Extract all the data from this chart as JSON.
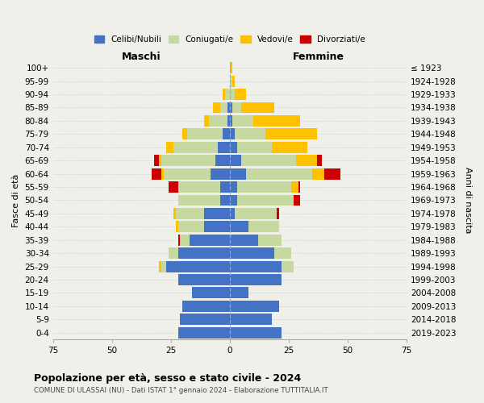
{
  "age_groups": [
    "0-4",
    "5-9",
    "10-14",
    "15-19",
    "20-24",
    "25-29",
    "30-34",
    "35-39",
    "40-44",
    "45-49",
    "50-54",
    "55-59",
    "60-64",
    "65-69",
    "70-74",
    "75-79",
    "80-84",
    "85-89",
    "90-94",
    "95-99",
    "100+"
  ],
  "birth_years": [
    "2019-2023",
    "2014-2018",
    "2009-2013",
    "2004-2008",
    "1999-2003",
    "1994-1998",
    "1989-1993",
    "1984-1988",
    "1979-1983",
    "1974-1978",
    "1969-1973",
    "1964-1968",
    "1959-1963",
    "1954-1958",
    "1949-1953",
    "1944-1948",
    "1939-1943",
    "1934-1938",
    "1929-1933",
    "1924-1928",
    "≤ 1923"
  ],
  "colors": {
    "celibe": "#4472c4",
    "coniugato": "#c5d9a0",
    "vedovo": "#ffc000",
    "divorziato": "#cc0000"
  },
  "maschi": {
    "celibe": [
      22,
      21,
      20,
      16,
      22,
      27,
      22,
      17,
      11,
      11,
      4,
      4,
      8,
      6,
      5,
      3,
      1,
      1,
      0,
      0,
      0
    ],
    "coniugato": [
      0,
      0,
      0,
      0,
      0,
      2,
      4,
      4,
      11,
      12,
      18,
      18,
      20,
      23,
      19,
      15,
      8,
      3,
      2,
      0,
      0
    ],
    "vedovo": [
      0,
      0,
      0,
      0,
      0,
      1,
      0,
      0,
      1,
      1,
      0,
      0,
      1,
      1,
      3,
      2,
      2,
      3,
      1,
      0,
      0
    ],
    "divorziato": [
      0,
      0,
      0,
      0,
      0,
      0,
      0,
      1,
      0,
      0,
      0,
      4,
      4,
      2,
      0,
      0,
      0,
      0,
      0,
      0,
      0
    ]
  },
  "femmine": {
    "nubile": [
      22,
      18,
      21,
      8,
      22,
      22,
      19,
      12,
      8,
      2,
      3,
      3,
      7,
      5,
      3,
      2,
      1,
      1,
      0,
      0,
      0
    ],
    "coniugata": [
      0,
      0,
      0,
      0,
      0,
      5,
      7,
      10,
      13,
      18,
      24,
      23,
      28,
      23,
      15,
      13,
      9,
      4,
      2,
      1,
      0
    ],
    "vedova": [
      0,
      0,
      0,
      0,
      0,
      0,
      0,
      0,
      0,
      0,
      0,
      3,
      5,
      9,
      15,
      22,
      20,
      14,
      5,
      1,
      1
    ],
    "divorziata": [
      0,
      0,
      0,
      0,
      0,
      0,
      0,
      0,
      0,
      1,
      3,
      1,
      7,
      2,
      0,
      0,
      0,
      0,
      0,
      0,
      0
    ]
  },
  "title": "Popolazione per età, sesso e stato civile - 2024",
  "subtitle": "COMUNE DI ULASSAI (NU) - Dati ISTAT 1° gennaio 2024 - Elaborazione TUTTITALIA.IT",
  "xlabel_maschi": "Maschi",
  "xlabel_femmine": "Femmine",
  "ylabel_left": "Fasce di età",
  "ylabel_right": "Anni di nascita",
  "xlim": 75,
  "bg_color": "#f0f0eb",
  "legend_labels": [
    "Celibi/Nubili",
    "Coniugati/e",
    "Vedovi/e",
    "Divorziati/e"
  ]
}
